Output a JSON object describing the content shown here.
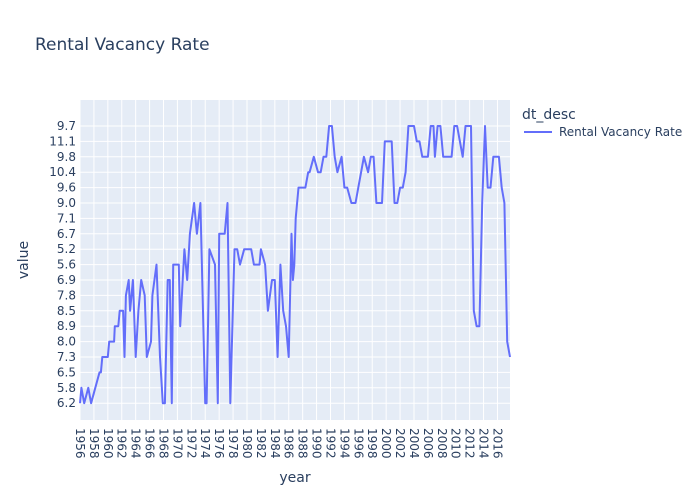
{
  "chart_data": {
    "type": "line",
    "title": "Rental Vacancy Rate",
    "xlabel": "year",
    "ylabel": "value",
    "legend_title": "dt_desc",
    "legend_position": "top-right",
    "grid": true,
    "x_ticks": [
      "1956",
      "1958",
      "1960",
      "1962",
      "1964",
      "1966",
      "1968",
      "1970",
      "1972",
      "1974",
      "1976",
      "1978",
      "1980",
      "1982",
      "1984",
      "1986",
      "1988",
      "1990",
      "1992",
      "1994",
      "1996",
      "1998",
      "2000",
      "2002",
      "2004",
      "2006",
      "2008",
      "2010",
      "2012",
      "2014",
      "2016"
    ],
    "y_categories": [
      "6.2",
      "5.8",
      "6.5",
      "7.3",
      "8.0",
      "8.9",
      "8.5",
      "7.8",
      "6.9",
      "5.6",
      "5.2",
      "6.7",
      "7.1",
      "9.0",
      "9.6",
      "10.4",
      "9.8",
      "11.1",
      "9.7"
    ],
    "colors": {
      "series": "#636efa",
      "plot_bg": "#e5ecf6",
      "text": "#2a3f5f"
    },
    "series": [
      {
        "name": "Rental Vacancy Rate",
        "points": [
          [
            "1956",
            "6.2"
          ],
          [
            "1956.2",
            "5.8"
          ],
          [
            "1956.6",
            "6.2"
          ],
          [
            "1957.2",
            "5.8"
          ],
          [
            "1957.6",
            "6.2"
          ],
          [
            "1958.2",
            "5.8"
          ],
          [
            "1958.8",
            "6.5"
          ],
          [
            "1959",
            "6.5"
          ],
          [
            "1959.2",
            "7.3"
          ],
          [
            "1960",
            "7.3"
          ],
          [
            "1960.2",
            "8.0"
          ],
          [
            "1960.9",
            "8.0"
          ],
          [
            "1961",
            "8.9"
          ],
          [
            "1961.5",
            "8.9"
          ],
          [
            "1961.7",
            "8.5"
          ],
          [
            "1962.2",
            "8.5"
          ],
          [
            "1962.4",
            "7.3"
          ],
          [
            "1962.6",
            "7.8"
          ],
          [
            "1963",
            "6.9"
          ],
          [
            "1963.2",
            "8.5"
          ],
          [
            "1963.6",
            "6.9"
          ],
          [
            "1964",
            "7.3"
          ],
          [
            "1964.4",
            "8.5"
          ],
          [
            "1964.8",
            "6.9"
          ],
          [
            "1965.3",
            "7.8"
          ],
          [
            "1965.6",
            "7.3"
          ],
          [
            "1966.2",
            "8.0"
          ],
          [
            "1966.4",
            "7.8"
          ],
          [
            "1967",
            "5.6"
          ],
          [
            "1967.5",
            "7.3"
          ],
          [
            "1967.9",
            "6.2"
          ],
          [
            "1968",
            "6.2"
          ],
          [
            "1968.2",
            "6.2"
          ],
          [
            "1968.6",
            "6.9"
          ],
          [
            "1968.9",
            "6.9"
          ],
          [
            "1969.2",
            "6.2"
          ],
          [
            "1969.4",
            "5.6"
          ],
          [
            "1969.8",
            "5.6"
          ],
          [
            "1970.2",
            "5.6"
          ],
          [
            "1970.4",
            "8.9"
          ],
          [
            "1971",
            "5.2"
          ],
          [
            "1971.4",
            "6.9"
          ],
          [
            "1971.8",
            "6.7"
          ],
          [
            "1972.4",
            "9.0"
          ],
          [
            "1972.8",
            "6.7"
          ],
          [
            "1973.3",
            "9.0"
          ],
          [
            "1974",
            "6.2"
          ],
          [
            "1974.2",
            "6.2"
          ],
          [
            "1974.6",
            "5.2"
          ],
          [
            "1975.4",
            "5.6"
          ],
          [
            "1975.8",
            "6.2"
          ],
          [
            "1976",
            "6.7"
          ],
          [
            "1976.4",
            "6.7"
          ],
          [
            "1976.8",
            "6.7"
          ],
          [
            "1977.2",
            "9.0"
          ],
          [
            "1977.6",
            "6.2"
          ],
          [
            "1978.2",
            "5.2"
          ],
          [
            "1978.6",
            "5.2"
          ],
          [
            "1979",
            "5.6"
          ],
          [
            "1979.6",
            "5.2"
          ],
          [
            "1980",
            "5.2"
          ],
          [
            "1980.6",
            "5.2"
          ],
          [
            "1981",
            "5.6"
          ],
          [
            "1981.8",
            "5.6"
          ],
          [
            "1982",
            "5.2"
          ],
          [
            "1982.6",
            "5.6"
          ],
          [
            "1983",
            "8.5"
          ],
          [
            "1983.6",
            "6.9"
          ],
          [
            "1984",
            "6.9"
          ],
          [
            "1984.4",
            "7.3"
          ],
          [
            "1984.8",
            "5.6"
          ],
          [
            "1985.2",
            "8.5"
          ],
          [
            "1985.6",
            "8.9"
          ],
          [
            "1986",
            "7.3"
          ],
          [
            "1986.4",
            "6.7"
          ],
          [
            "1986.6",
            "6.9"
          ],
          [
            "1986.8",
            "5.6"
          ],
          [
            "1987",
            "7.1"
          ],
          [
            "1987.4",
            "9.6"
          ],
          [
            "1987.8",
            "9.6"
          ],
          [
            "1988.4",
            "9.6"
          ],
          [
            "1988.8",
            "10.4"
          ],
          [
            "1989",
            "10.4"
          ],
          [
            "1989.6",
            "9.8"
          ],
          [
            "1990.2",
            "10.4"
          ],
          [
            "1990.6",
            "10.4"
          ],
          [
            "1991",
            "9.8"
          ],
          [
            "1991.4",
            "9.8"
          ],
          [
            "1991.8",
            "9.7"
          ],
          [
            "1992.2",
            "9.7"
          ],
          [
            "1992.6",
            "9.8"
          ],
          [
            "1993",
            "10.4"
          ],
          [
            "1993.6",
            "9.8"
          ],
          [
            "1994",
            "9.6"
          ],
          [
            "1994.4",
            "9.6"
          ],
          [
            "1995",
            "9.0"
          ],
          [
            "1995.6",
            "9.0"
          ],
          [
            "1996",
            "9.6"
          ],
          [
            "1996.4",
            "10.4"
          ],
          [
            "1996.8",
            "9.8"
          ],
          [
            "1997.4",
            "10.4"
          ],
          [
            "1997.8",
            "9.8"
          ],
          [
            "1998.2",
            "9.8"
          ],
          [
            "1998.6",
            "9.0"
          ],
          [
            "1999",
            "9.0"
          ],
          [
            "1999.4",
            "9.0"
          ],
          [
            "1999.8",
            "11.1"
          ],
          [
            "2000.4",
            "11.1"
          ],
          [
            "2000.8",
            "11.1"
          ],
          [
            "2001.2",
            "9.0"
          ],
          [
            "2001.6",
            "9.0"
          ],
          [
            "2002",
            "9.6"
          ],
          [
            "2002.4",
            "9.6"
          ],
          [
            "2002.8",
            "10.4"
          ],
          [
            "2003.2",
            "9.7"
          ],
          [
            "2003.6",
            "9.7"
          ],
          [
            "2004",
            "9.7"
          ],
          [
            "2004.4",
            "11.1"
          ],
          [
            "2004.8",
            "11.1"
          ],
          [
            "2005.2",
            "9.8"
          ],
          [
            "2005.6",
            "9.8"
          ],
          [
            "2006",
            "9.8"
          ],
          [
            "2006.4",
            "9.7"
          ],
          [
            "2006.8",
            "9.7"
          ],
          [
            "2007",
            "9.8"
          ],
          [
            "2007.4",
            "9.7"
          ],
          [
            "2007.8",
            "9.7"
          ],
          [
            "2008.2",
            "9.8"
          ],
          [
            "2008.6",
            "9.8"
          ],
          [
            "2009",
            "9.8"
          ],
          [
            "2009.4",
            "9.8"
          ],
          [
            "2009.8",
            "9.7"
          ],
          [
            "2010.2",
            "9.7"
          ],
          [
            "2010.6",
            "11.1"
          ],
          [
            "2011",
            "9.8"
          ],
          [
            "2011.4",
            "9.7"
          ],
          [
            "2011.8",
            "9.7"
          ],
          [
            "2012.2",
            "9.7"
          ],
          [
            "2012.6",
            "8.5"
          ],
          [
            "2013",
            "8.9"
          ],
          [
            "2013.4",
            "8.9"
          ],
          [
            "2013.8",
            "9.0"
          ],
          [
            "2014.2",
            "9.7"
          ],
          [
            "2014.6",
            "9.6"
          ],
          [
            "2015",
            "9.6"
          ],
          [
            "2015.4",
            "9.8"
          ],
          [
            "2015.8",
            "9.8"
          ],
          [
            "2016.2",
            "9.8"
          ],
          [
            "2016.6",
            "9.6"
          ],
          [
            "2017",
            "9.0"
          ],
          [
            "2017.4",
            "8.0"
          ],
          [
            "2017.8",
            "7.3"
          ]
        ]
      }
    ]
  }
}
